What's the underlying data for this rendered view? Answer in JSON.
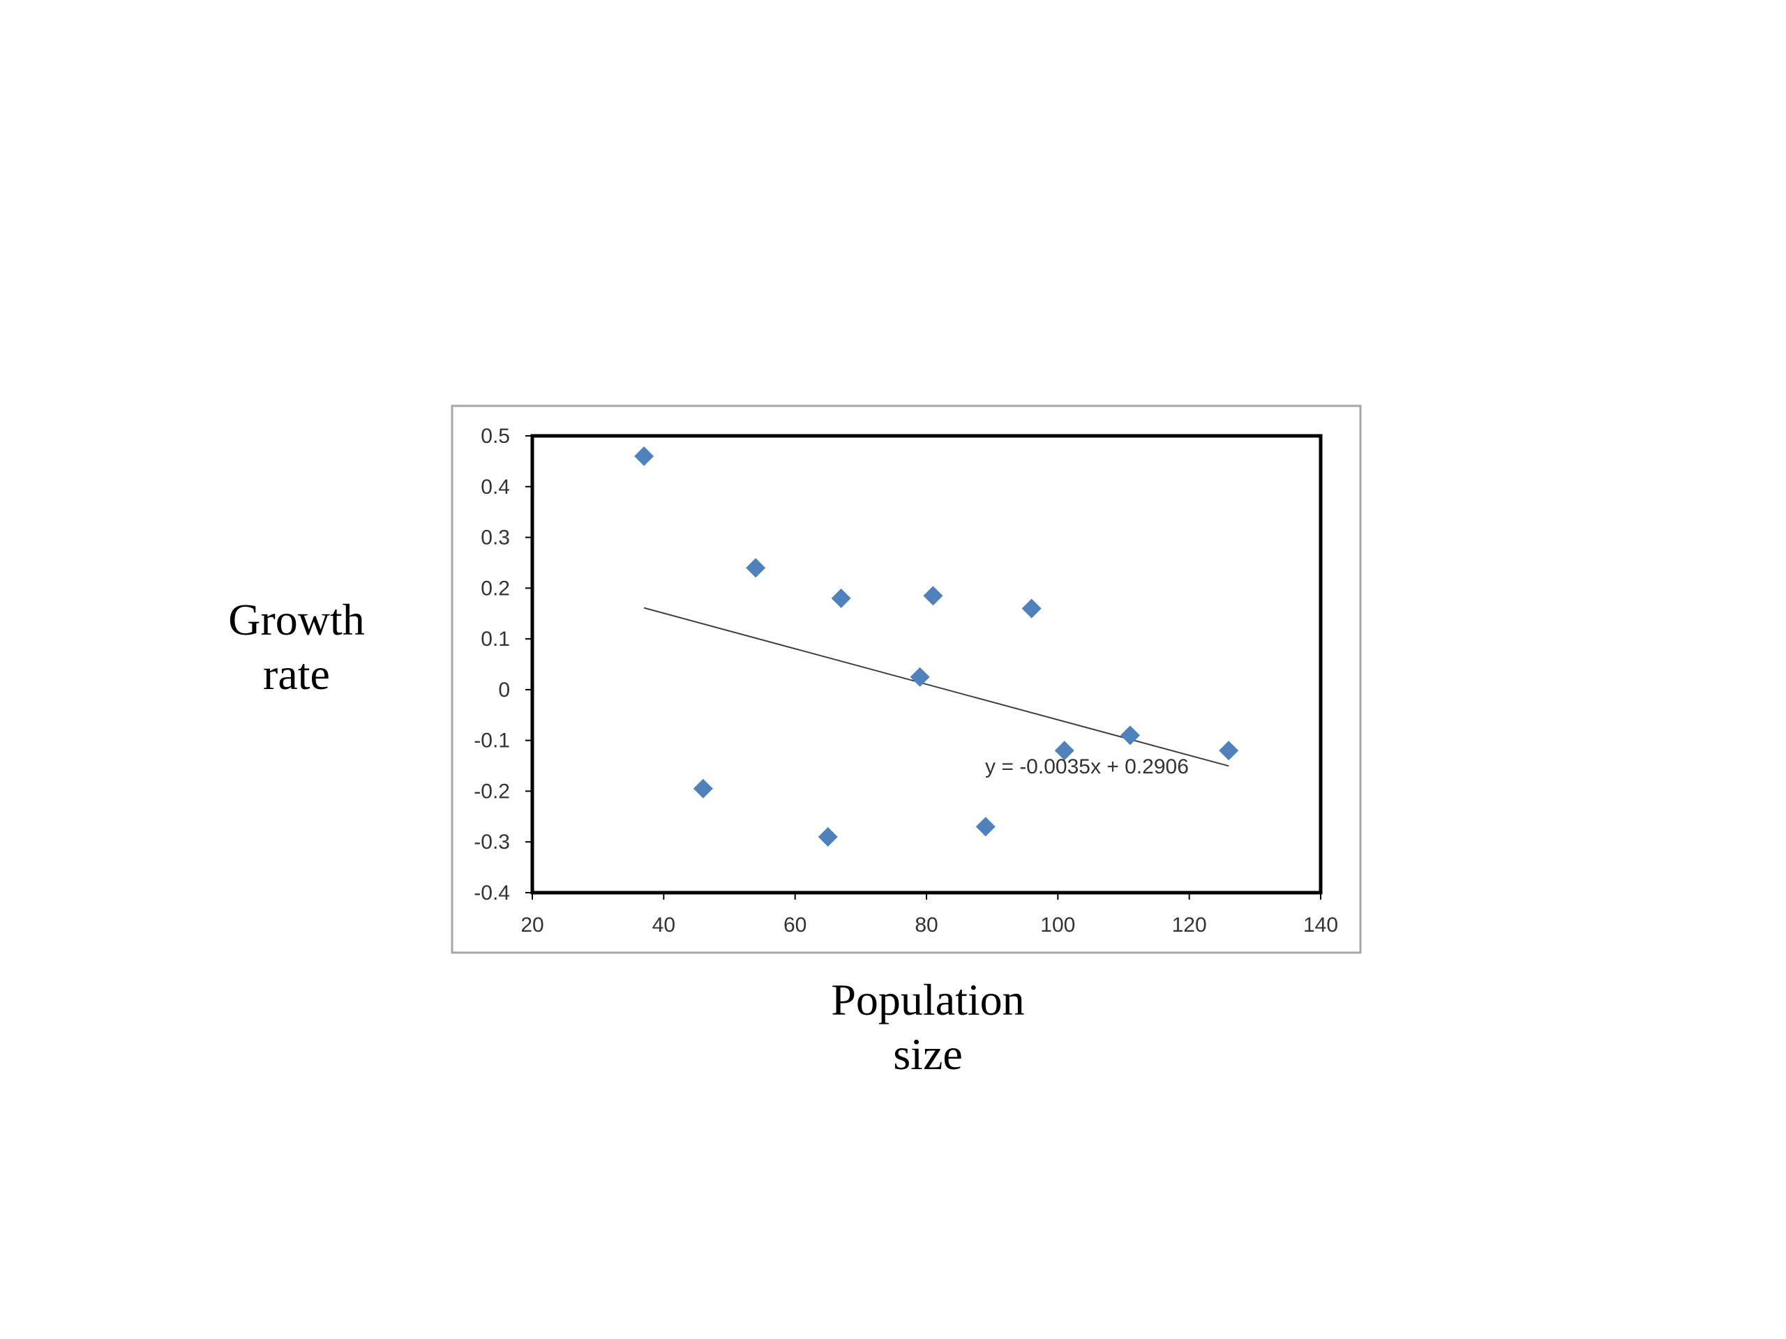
{
  "chart_data": {
    "type": "scatter",
    "xlabel_lines": [
      "Population",
      "size"
    ],
    "ylabel_lines": [
      "Growth",
      "rate"
    ],
    "xlim": [
      20,
      140
    ],
    "ylim": [
      -0.4,
      0.5
    ],
    "x_ticks": [
      20,
      40,
      60,
      80,
      100,
      120,
      140
    ],
    "y_ticks": [
      -0.4,
      -0.3,
      -0.2,
      -0.1,
      0,
      0.1,
      0.2,
      0.3,
      0.4,
      0.5
    ],
    "x_tick_labels": [
      "20",
      "40",
      "60",
      "80",
      "100",
      "120",
      "140"
    ],
    "y_tick_labels": [
      "-0.4",
      "-0.3",
      "-0.2",
      "-0.1",
      "0",
      "0.1",
      "0.2",
      "0.3",
      "0.4",
      "0.5"
    ],
    "points": [
      {
        "x": 37,
        "y": 0.46
      },
      {
        "x": 46,
        "y": -0.195
      },
      {
        "x": 54,
        "y": 0.24
      },
      {
        "x": 65,
        "y": -0.29
      },
      {
        "x": 67,
        "y": 0.18
      },
      {
        "x": 79,
        "y": 0.025
      },
      {
        "x": 81,
        "y": 0.185
      },
      {
        "x": 89,
        "y": -0.27
      },
      {
        "x": 96,
        "y": 0.16
      },
      {
        "x": 101,
        "y": -0.12
      },
      {
        "x": 111,
        "y": -0.09
      },
      {
        "x": 126,
        "y": -0.12
      }
    ],
    "trendline": {
      "slope": -0.0035,
      "intercept": 0.2906,
      "x_range": [
        37,
        126
      ],
      "equation": "y = -0.0035x + 0.2906"
    },
    "marker_color": "#4F81BD",
    "grid": false
  }
}
